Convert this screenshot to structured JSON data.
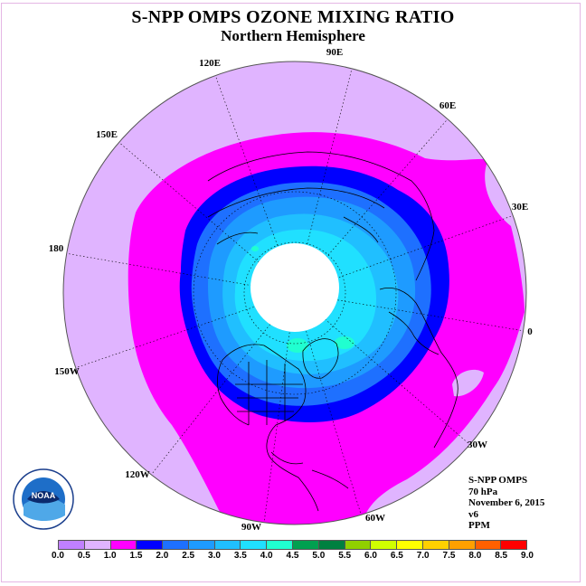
{
  "title": "S-NPP OMPS OZONE MIXING RATIO",
  "subtitle": "Northern Hemisphere",
  "longitude_labels": [
    "90E",
    "60E",
    "30E",
    "0",
    "30W",
    "60W",
    "90W",
    "120W",
    "150W",
    "180",
    "150E",
    "120E"
  ],
  "info": {
    "instrument": "S-NPP OMPS",
    "level": "70 hPa",
    "date": "November 6, 2015",
    "version": "v6",
    "units": "PPM"
  },
  "logo_text": "NOAA",
  "colorbar": {
    "ticks": [
      "0.0",
      "0.5",
      "1.0",
      "1.5",
      "2.0",
      "2.5",
      "3.0",
      "3.5",
      "4.0",
      "4.5",
      "5.0",
      "5.5",
      "6.0",
      "6.5",
      "7.0",
      "7.5",
      "8.0",
      "8.5",
      "9.0"
    ],
    "colors": [
      "#c080ff",
      "#e0b4ff",
      "#ff00ff",
      "#0000ff",
      "#1e70ff",
      "#1e9bff",
      "#20bfff",
      "#20e0ff",
      "#20ffd0",
      "#00a050",
      "#008040",
      "#90d000",
      "#d0ff00",
      "#ffff00",
      "#ffd000",
      "#ffa000",
      "#ff6000",
      "#ff0000",
      "#8b5a40"
    ]
  },
  "colors": {
    "level_0_5_1_0": "#e0b4ff",
    "level_1_0_1_5": "#ff00ff",
    "level_1_5_2_0": "#0000ff",
    "level_2_0_2_5": "#1e70ff",
    "level_2_5_3_0": "#1e9bff",
    "level_3_0_3_5": "#20bfff",
    "level_3_5_4_0": "#20e0ff",
    "level_4_0_4_5": "#20ffd0"
  }
}
